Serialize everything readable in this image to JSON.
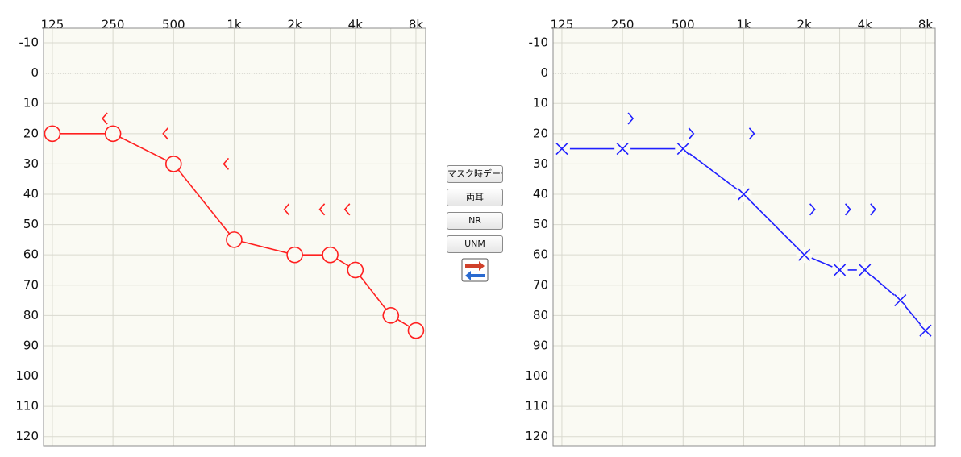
{
  "chart_data": [
    {
      "type": "line",
      "xscale": "log",
      "xlim": [
        113,
        8940
      ],
      "ylim": [
        -14.8,
        123
      ],
      "xticks": [
        125,
        250,
        500,
        {
          "value": 1000,
          "label": "1k"
        },
        {
          "value": 2000,
          "label": "2k"
        },
        {
          "value": 4000,
          "label": "4k"
        },
        {
          "value": 8000,
          "label": "8k"
        }
      ],
      "xgrid_extra": [
        3000,
        6000
      ],
      "yticks": [
        -10,
        0,
        10,
        20,
        30,
        40,
        50,
        60,
        70,
        80,
        90,
        100,
        110,
        120
      ],
      "zero_line": 0,
      "grid": true,
      "series": [
        {
          "color": "#ff2020",
          "marker": "o",
          "x": [
            125,
            250,
            500,
            1000,
            2000,
            3000,
            4000,
            6000,
            8000
          ],
          "values": [
            20,
            20,
            30,
            55,
            60,
            60,
            65,
            80,
            85
          ]
        },
        {
          "color": "#ff2020",
          "marker": "<",
          "x": [
            250,
            500,
            1000,
            2000,
            3000,
            4000
          ],
          "values": [
            15,
            20,
            30,
            45,
            45,
            45
          ]
        }
      ]
    },
    {
      "type": "line",
      "xscale": "log",
      "xlim": [
        113,
        8940
      ],
      "ylim": [
        -14.8,
        123
      ],
      "xticks": [
        125,
        250,
        500,
        {
          "value": 1000,
          "label": "1k"
        },
        {
          "value": 2000,
          "label": "2k"
        },
        {
          "value": 4000,
          "label": "4k"
        },
        {
          "value": 8000,
          "label": "8k"
        }
      ],
      "xgrid_extra": [
        3000,
        6000
      ],
      "yticks": [
        -10,
        0,
        10,
        20,
        30,
        40,
        50,
        60,
        70,
        80,
        90,
        100,
        110,
        120
      ],
      "zero_line": 0,
      "grid": true,
      "series": [
        {
          "color": "#2020ff",
          "marker": "x",
          "x": [
            125,
            250,
            500,
            1000,
            2000,
            3000,
            4000,
            6000,
            8000
          ],
          "values": [
            25,
            25,
            25,
            40,
            60,
            65,
            65,
            75,
            85
          ]
        },
        {
          "color": "#2020ff",
          "marker": ">",
          "x": [
            250,
            500,
            1000,
            2000,
            3000,
            4000
          ],
          "values": [
            15,
            20,
            20,
            45,
            45,
            45
          ]
        }
      ]
    }
  ],
  "buttons": [
    "マスク時データ",
    "両耳",
    "NR",
    "UNM"
  ]
}
